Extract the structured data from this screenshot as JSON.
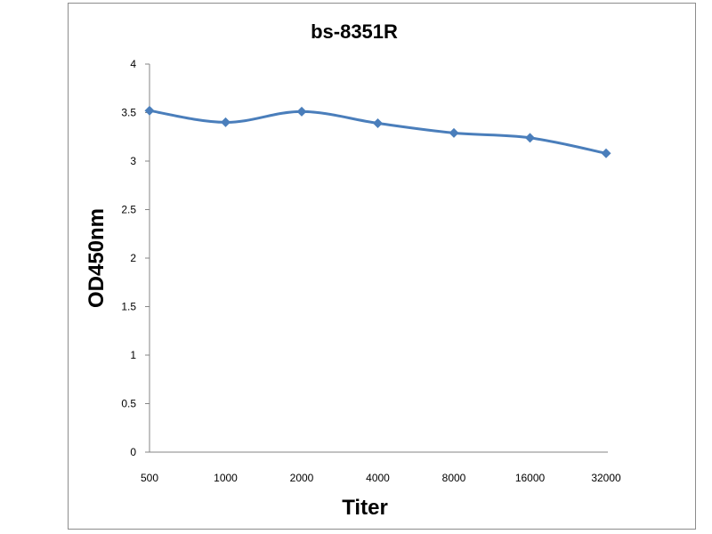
{
  "chart_data": {
    "type": "line",
    "title": "bs-8351R",
    "xlabel": "Titer",
    "ylabel": "OD450nm",
    "categories": [
      "500",
      "1000",
      "2000",
      "4000",
      "8000",
      "16000",
      "32000"
    ],
    "series": [
      {
        "values": [
          3.52,
          3.4,
          3.51,
          3.39,
          3.29,
          3.24,
          3.08
        ],
        "color": "#4a7ebb",
        "marker": "diamond"
      }
    ],
    "ylim": [
      0,
      4
    ],
    "yticks": [
      0,
      0.5,
      1,
      1.5,
      2,
      2.5,
      3,
      3.5,
      4
    ],
    "ytick_labels": [
      "0",
      "0.5",
      "1",
      "1.5",
      "2",
      "2.5",
      "3",
      "3.5",
      "4"
    ],
    "grid": false,
    "legend": "none",
    "smooth": true
  }
}
